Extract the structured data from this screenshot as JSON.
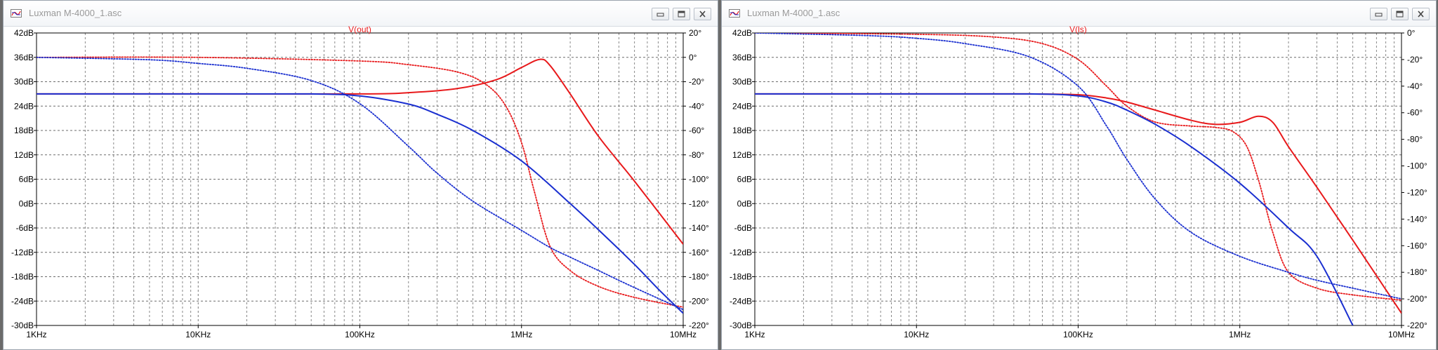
{
  "colors": {
    "magnitude": "#e8191b",
    "phase": "#1a2fd0",
    "grid": "#6c6c6c"
  },
  "windows": [
    {
      "title": "Luxman M-4000_1.asc",
      "icon": "waveform-icon",
      "buttons": [
        "minimize-icon",
        "restore-icon",
        "close-icon"
      ]
    },
    {
      "title": "Luxman M-4000_1.asc",
      "icon": "waveform-icon",
      "buttons": [
        "minimize-icon",
        "restore-icon",
        "close-icon"
      ]
    }
  ],
  "chart_data": [
    {
      "type": "line",
      "title": "V(out)",
      "x_scale": "log",
      "xlim": [
        1000,
        10000000
      ],
      "x_tick_labels": [
        "1KHz",
        "10KHz",
        "100KHz",
        "1MHz",
        "10MHz"
      ],
      "x_tick_values": [
        1000,
        10000,
        100000,
        1000000,
        10000000
      ],
      "ylim_left": [
        -30,
        42
      ],
      "y_left_tick_labels": [
        "42dB",
        "36dB",
        "30dB",
        "24dB",
        "18dB",
        "12dB",
        "6dB",
        "0dB",
        "-6dB",
        "-12dB",
        "-18dB",
        "-24dB",
        "-30dB"
      ],
      "y_left_tick_values": [
        42,
        36,
        30,
        24,
        18,
        12,
        6,
        0,
        -6,
        -12,
        -18,
        -24,
        -30
      ],
      "ylim_right": [
        -220,
        20
      ],
      "y_right_tick_labels": [
        "20°",
        "0°",
        "-20°",
        "-40°",
        "-60°",
        "-80°",
        "-100°",
        "-120°",
        "-140°",
        "-160°",
        "-180°",
        "-200°",
        "-220°"
      ],
      "y_right_tick_values": [
        20,
        0,
        -20,
        -40,
        -60,
        -80,
        -100,
        -120,
        -140,
        -160,
        -180,
        -200,
        -220
      ],
      "grid": true,
      "series": [
        {
          "axis": "left",
          "color": "magnitude",
          "dash": false,
          "x": [
            1000,
            10000,
            100000,
            200000,
            400000,
            700000,
            1000000,
            1300000,
            1500000,
            2000000,
            3000000,
            5000000,
            10000000
          ],
          "y": [
            27,
            27,
            27,
            27.3,
            28.3,
            30.5,
            33.5,
            35.5,
            34,
            27,
            16.5,
            5.5,
            -10
          ]
        },
        {
          "axis": "right",
          "color": "magnitude",
          "dash": true,
          "x": [
            1000,
            10000,
            100000,
            200000,
            400000,
            600000,
            800000,
            1000000,
            1200000,
            1500000,
            2000000,
            3000000,
            5000000,
            10000000
          ],
          "y": [
            0,
            0,
            -3,
            -6,
            -12,
            -22,
            -40,
            -70,
            -110,
            -155,
            -175,
            -188,
            -197,
            -205
          ]
        },
        {
          "axis": "left",
          "color": "phase",
          "dash": false,
          "x": [
            1000,
            10000,
            50000,
            100000,
            200000,
            300000,
            500000,
            1000000,
            2000000,
            3000000,
            5000000,
            7000000,
            10000000
          ],
          "y": [
            27,
            27,
            27,
            26.5,
            24.5,
            22,
            18,
            10.5,
            0,
            -6.5,
            -15,
            -21,
            -27
          ]
        },
        {
          "axis": "right",
          "color": "phase",
          "dash": true,
          "x": [
            1000,
            5000,
            10000,
            20000,
            50000,
            100000,
            200000,
            300000,
            500000,
            1000000,
            1500000,
            2000000,
            3000000,
            5000000,
            10000000
          ],
          "y": [
            0,
            -2,
            -5,
            -9,
            -19,
            -38,
            -73,
            -95,
            -118,
            -142,
            -156,
            -164,
            -175,
            -189,
            -207
          ]
        }
      ]
    },
    {
      "type": "line",
      "title": "V(ls)",
      "x_scale": "log",
      "xlim": [
        1000,
        10000000
      ],
      "x_tick_labels": [
        "1KHz",
        "10KHz",
        "100KHz",
        "1MHz",
        "10MHz"
      ],
      "x_tick_values": [
        1000,
        10000,
        100000,
        1000000,
        10000000
      ],
      "ylim_left": [
        -30,
        42
      ],
      "y_left_tick_labels": [
        "42dB",
        "36dB",
        "30dB",
        "24dB",
        "18dB",
        "12dB",
        "6dB",
        "0dB",
        "-6dB",
        "-12dB",
        "-18dB",
        "-24dB",
        "-30dB"
      ],
      "y_left_tick_values": [
        42,
        36,
        30,
        24,
        18,
        12,
        6,
        0,
        -6,
        -12,
        -18,
        -24,
        -30
      ],
      "ylim_right": [
        -220,
        0
      ],
      "y_right_tick_labels": [
        "0°",
        "-20°",
        "-40°",
        "-60°",
        "-80°",
        "-100°",
        "-120°",
        "-140°",
        "-160°",
        "-180°",
        "-200°",
        "-220°"
      ],
      "y_right_tick_values": [
        0,
        -20,
        -40,
        -60,
        -80,
        -100,
        -120,
        -140,
        -160,
        -180,
        -200,
        -220
      ],
      "grid": true,
      "series": [
        {
          "axis": "left",
          "color": "magnitude",
          "dash": false,
          "x": [
            1000,
            10000,
            50000,
            100000,
            150000,
            200000,
            300000,
            500000,
            700000,
            1000000,
            1300000,
            1600000,
            2000000,
            3000000,
            5000000,
            10000000
          ],
          "y": [
            27,
            27,
            27,
            26.8,
            26,
            25,
            23,
            20.5,
            19.5,
            20,
            21.5,
            20,
            14,
            4,
            -9,
            -27
          ]
        },
        {
          "axis": "right",
          "color": "magnitude",
          "dash": true,
          "x": [
            1000,
            10000,
            30000,
            60000,
            100000,
            150000,
            200000,
            300000,
            500000,
            700000,
            900000,
            1100000,
            1300000,
            1600000,
            2000000,
            3000000,
            5000000,
            10000000
          ],
          "y": [
            0,
            -1,
            -3,
            -8,
            -20,
            -40,
            -55,
            -67,
            -70,
            -71,
            -74,
            -85,
            -110,
            -150,
            -180,
            -192,
            -197,
            -201
          ]
        },
        {
          "axis": "left",
          "color": "phase",
          "dash": false,
          "x": [
            1000,
            10000,
            50000,
            100000,
            150000,
            200000,
            300000,
            500000,
            1000000,
            2000000,
            3000000,
            5000000
          ],
          "y": [
            27,
            27,
            27,
            26.5,
            25,
            23,
            19.5,
            14,
            5,
            -6,
            -13,
            -30
          ]
        },
        {
          "axis": "right",
          "color": "phase",
          "dash": true,
          "x": [
            1000,
            5000,
            10000,
            20000,
            50000,
            100000,
            150000,
            200000,
            300000,
            500000,
            1000000,
            2000000,
            3000000,
            5000000,
            10000000
          ],
          "y": [
            0,
            -2,
            -4,
            -8,
            -18,
            -40,
            -70,
            -95,
            -125,
            -150,
            -168,
            -180,
            -186,
            -192,
            -200
          ]
        }
      ]
    }
  ]
}
